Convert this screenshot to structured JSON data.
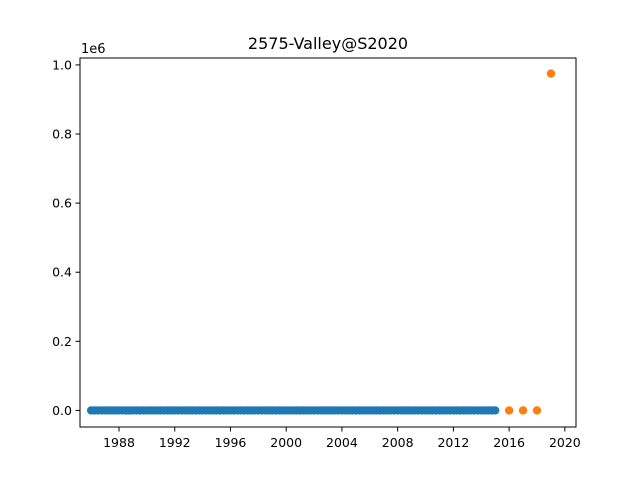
{
  "chart_data": {
    "type": "scatter",
    "title": "2575-Valley@S2020",
    "xlabel": "",
    "ylabel": "",
    "y_offset_text": "1e6",
    "xlim": [
      1985.2,
      2020.8
    ],
    "ylim": [
      -0.048,
      1.02
    ],
    "x_ticks": [
      1988,
      1992,
      1996,
      2000,
      2004,
      2008,
      2012,
      2016,
      2020
    ],
    "y_ticks": [
      0.0,
      0.2,
      0.4,
      0.6,
      0.8,
      1.0
    ],
    "y_tick_labels": [
      "0.0",
      "0.2",
      "0.4",
      "0.6",
      "0.8",
      "1.0"
    ],
    "grid": false,
    "series": [
      {
        "color": "#1f77b4",
        "points": {
          "x_start": 1986.0,
          "x_end": 2015.0,
          "x_step": 0.25,
          "y_constant": 0.0
        }
      },
      {
        "color": "#ff7f0e",
        "x": [
          2016,
          2017,
          2018,
          2019
        ],
        "y": [
          0.0,
          0.0,
          0.0,
          0.975
        ]
      }
    ]
  }
}
